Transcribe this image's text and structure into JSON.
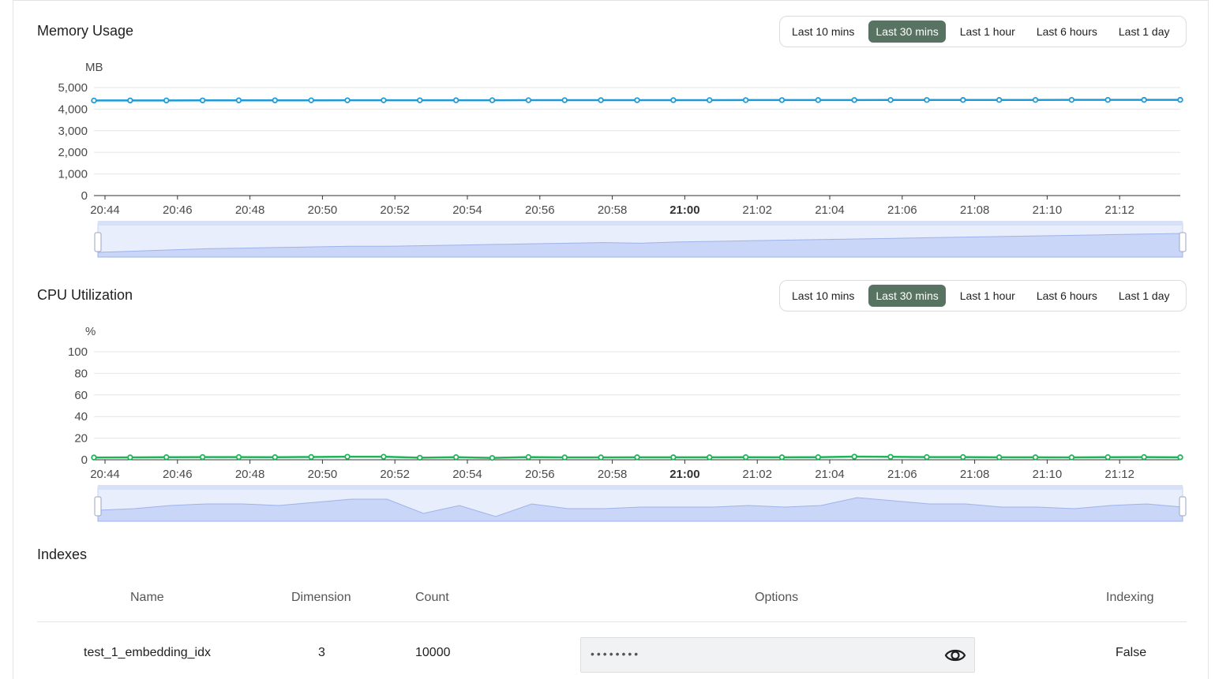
{
  "time_ranges": [
    "Last 10 mins",
    "Last 30 mins",
    "Last 1 hour",
    "Last 6 hours",
    "Last 1 day"
  ],
  "active_range": "Last 30 mins",
  "memory": {
    "title": "Memory Usage",
    "ranges": [
      "Last 10 mins",
      "Last 30 mins",
      "Last 1 hour",
      "Last 6 hours",
      "Last 1 day"
    ],
    "active": 1
  },
  "cpu": {
    "title": "CPU Utilization",
    "ranges": [
      "Last 10 mins",
      "Last 30 mins",
      "Last 1 hour",
      "Last 6 hours",
      "Last 1 day"
    ],
    "active": 1
  },
  "indexes": {
    "title": "Indexes",
    "headers": {
      "name": "Name",
      "dimension": "Dimension",
      "count": "Count",
      "options": "Options",
      "indexing": "Indexing"
    },
    "rows": [
      {
        "name": "test_1_embedding_idx",
        "dimension": "3",
        "count": "10000",
        "options_masked": "••••••••",
        "indexing": "False"
      }
    ]
  },
  "colors": {
    "memory_line": "#1e9bd7",
    "cpu_line": "#1fb458",
    "active_button": "#587361",
    "zoom_fill": "#c9d6f7"
  },
  "chart_data": [
    {
      "type": "line",
      "title": "Memory Usage",
      "ylabel": "MB",
      "ylim": [
        0,
        5000
      ],
      "yticks": [
        "0",
        "1,000",
        "2,000",
        "3,000",
        "4,000",
        "5,000"
      ],
      "xticks": [
        "20:44",
        "20:46",
        "20:48",
        "20:50",
        "20:52",
        "20:54",
        "20:56",
        "20:58",
        "21:00",
        "21:02",
        "21:04",
        "21:06",
        "21:08",
        "21:10",
        "21:12"
      ],
      "bold_tick": "21:00",
      "x_start_minute": -16.3,
      "x_step_minutes": 1,
      "series": [
        {
          "values": [
            4400,
            4402,
            4404,
            4406,
            4407,
            4408,
            4409,
            4410,
            4410,
            4411,
            4412,
            4413,
            4414,
            4415,
            4416,
            4415,
            4417,
            4418,
            4419,
            4420,
            4421,
            4422,
            4423,
            4424,
            4425,
            4426,
            4427,
            4428,
            4429,
            4430,
            4431
          ]
        }
      ]
    },
    {
      "type": "line",
      "title": "CPU Utilization",
      "ylabel": "%",
      "ylim": [
        0,
        100
      ],
      "yticks": [
        "0",
        "20",
        "40",
        "60",
        "80",
        "100"
      ],
      "xticks": [
        "20:44",
        "20:46",
        "20:48",
        "20:50",
        "20:52",
        "20:54",
        "20:56",
        "20:58",
        "21:00",
        "21:02",
        "21:04",
        "21:06",
        "21:08",
        "21:10",
        "21:12"
      ],
      "bold_tick": "21:00",
      "series": [
        {
          "values": [
            2.1,
            2.2,
            2.4,
            2.5,
            2.5,
            2.4,
            2.6,
            2.8,
            2.8,
            1.9,
            2.4,
            1.7,
            2.5,
            2.2,
            2.2,
            2.3,
            2.3,
            2.3,
            2.4,
            2.3,
            2.4,
            2.9,
            2.7,
            2.5,
            2.5,
            2.3,
            2.3,
            2.2,
            2.4,
            2.5,
            2.3
          ]
        }
      ]
    }
  ]
}
